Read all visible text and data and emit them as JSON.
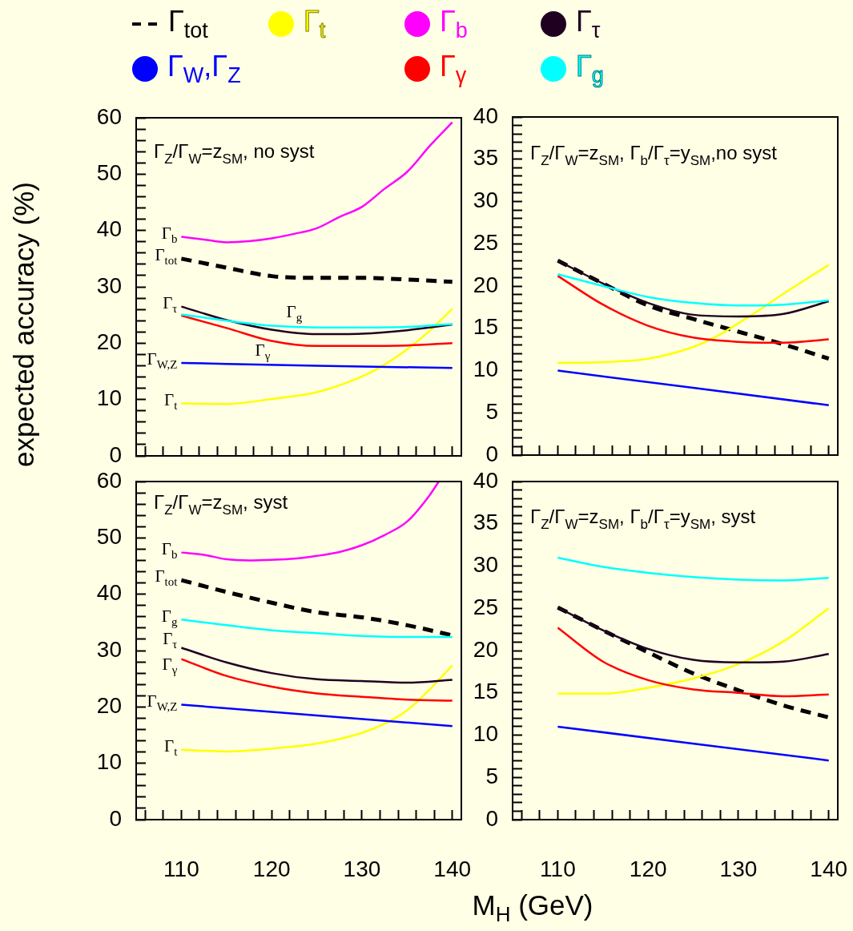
{
  "chart_data": [
    {
      "type": "line",
      "title": "Γ$_{Z}$/Γ$_{W}$=z$_{SM}$, no syst",
      "ylabel": "expected accuracy  (%)",
      "legend": "top",
      "marker": "none",
      "tick_labels": "y",
      "x": [
        110,
        115,
        120,
        125,
        130,
        135,
        140
      ],
      "xlim": [
        105,
        141
      ],
      "xticks": [
        {
          "value": 106,
          "label": null
        },
        {
          "value": 108,
          "label": null
        },
        110,
        {
          "value": 112,
          "label": null
        },
        {
          "value": 114,
          "label": null
        },
        {
          "value": 116,
          "label": null
        },
        {
          "value": 118,
          "label": null
        },
        120,
        {
          "value": 122,
          "label": null
        },
        {
          "value": 124,
          "label": null
        },
        {
          "value": 126,
          "label": null
        },
        {
          "value": 128,
          "label": null
        },
        130,
        {
          "value": 132,
          "label": null
        },
        {
          "value": 134,
          "label": null
        },
        {
          "value": 136,
          "label": null
        },
        {
          "value": 138,
          "label": null
        },
        140
      ],
      "ylim": [
        0,
        60
      ],
      "yticks": [
        0,
        {
          "value": 2,
          "label": null
        },
        {
          "value": 4,
          "label": null
        },
        {
          "value": 6,
          "label": null
        },
        {
          "value": 8,
          "label": null
        },
        10,
        {
          "value": 12,
          "label": null
        },
        {
          "value": 14,
          "label": null
        },
        {
          "value": 16,
          "label": null
        },
        {
          "value": 18,
          "label": null
        },
        20,
        {
          "value": 22,
          "label": null
        },
        {
          "value": 24,
          "label": null
        },
        {
          "value": 26,
          "label": null
        },
        {
          "value": 28,
          "label": null
        },
        30,
        {
          "value": 32,
          "label": null
        },
        {
          "value": 34,
          "label": null
        },
        {
          "value": 36,
          "label": null
        },
        {
          "value": 38,
          "label": null
        },
        40,
        {
          "value": 42,
          "label": null
        },
        {
          "value": 44,
          "label": null
        },
        {
          "value": 46,
          "label": null
        },
        {
          "value": 48,
          "label": null
        },
        50,
        {
          "value": 52,
          "label": null
        },
        {
          "value": 54,
          "label": null
        },
        {
          "value": 56,
          "label": null
        },
        {
          "value": 58,
          "label": null
        },
        60
      ],
      "series": [
        {
          "name": "Γ$_{tot}$",
          "color": "#000000",
          "line_style": "dashed",
          "values": [
            35.0,
            33.4,
            31.9,
            31.6,
            31.6,
            31.3,
            30.9
          ]
        },
        {
          "name": "Γ$_{t}$",
          "color": "#ffff00",
          "x": [
            110,
            115,
            120,
            125,
            130,
            132.5,
            135,
            137.5,
            140
          ],
          "values": [
            9.3,
            9.2,
            10.1,
            11.3,
            14.1,
            16.2,
            18.9,
            22.2,
            26.1
          ]
        },
        {
          "name": "Γ$_{b}$",
          "color": "#ff00ff",
          "x": [
            110,
            112.5,
            115,
            117.5,
            120,
            122.5,
            125,
            127.5,
            130,
            132.5,
            135,
            137.5,
            140
          ],
          "values": [
            38.9,
            38.4,
            37.9,
            38.1,
            38.6,
            39.4,
            40.4,
            42.4,
            44.2,
            47.4,
            50.4,
            55.0,
            59.2
          ]
        },
        {
          "name": "Γ$_{τ}$",
          "color": "#200020",
          "values": [
            26.5,
            24.1,
            22.4,
            21.6,
            21.7,
            22.3,
            23.3
          ]
        },
        {
          "name": "Γ$_{W}$,Γ$_{Z}$",
          "color": "#0000ff",
          "x": [
            110,
            125,
            140
          ],
          "values": [
            16.5,
            16.0,
            15.6
          ]
        },
        {
          "name": "Γ$_{γ}$",
          "color": "#ff0000",
          "values": [
            24.9,
            22.7,
            20.4,
            19.5,
            19.5,
            19.6,
            20.0
          ]
        },
        {
          "name": "Γ$_{g}$",
          "color": "#00ffff",
          "values": [
            25.1,
            24.0,
            23.1,
            22.8,
            22.8,
            22.9,
            23.4
          ]
        }
      ],
      "annotations": [
        {
          "text": "Γ$_{b}$",
          "x": 110,
          "y": 38.9
        },
        {
          "text": "Γ$_{tot}$",
          "x": 110,
          "y": 35.0
        },
        {
          "text": "Γ$_{τ}$",
          "x": 110,
          "y": 26.5
        },
        {
          "text": "Γ$_{g}$",
          "x": 122.5,
          "y": 22.9
        },
        {
          "text": "Γ$_{γ}$",
          "x": 119,
          "y": 20.6
        },
        {
          "text": "Γ$_{W,Z}$",
          "x": 110,
          "y": 16.5
        },
        {
          "text": "Γ$_{t}$",
          "x": 110,
          "y": 9.3
        }
      ]
    },
    {
      "type": "line",
      "title": "Γ$_{Z}$/Γ$_{W}$=z$_{SM}$, Γ$_{b}$/Γ$_{τ}$=y$_{SM}$,no syst",
      "marker": "none",
      "tick_labels": "y",
      "x": [
        110,
        115,
        120,
        125,
        130,
        135,
        140
      ],
      "xlim": [
        105,
        141
      ],
      "xticks": [
        {
          "value": 106,
          "label": null
        },
        {
          "value": 108,
          "label": null
        },
        110,
        {
          "value": 112,
          "label": null
        },
        {
          "value": 114,
          "label": null
        },
        {
          "value": 116,
          "label": null
        },
        {
          "value": 118,
          "label": null
        },
        120,
        {
          "value": 122,
          "label": null
        },
        {
          "value": 124,
          "label": null
        },
        {
          "value": 126,
          "label": null
        },
        {
          "value": 128,
          "label": null
        },
        130,
        {
          "value": 132,
          "label": null
        },
        {
          "value": 134,
          "label": null
        },
        {
          "value": 136,
          "label": null
        },
        {
          "value": 138,
          "label": null
        },
        140
      ],
      "ylim": [
        0,
        40
      ],
      "yticks": [
        0,
        {
          "value": 1,
          "label": null
        },
        {
          "value": 2,
          "label": null
        },
        {
          "value": 3,
          "label": null
        },
        {
          "value": 4,
          "label": null
        },
        5,
        {
          "value": 6,
          "label": null
        },
        {
          "value": 7,
          "label": null
        },
        {
          "value": 8,
          "label": null
        },
        {
          "value": 9,
          "label": null
        },
        10,
        {
          "value": 11,
          "label": null
        },
        {
          "value": 12,
          "label": null
        },
        {
          "value": 13,
          "label": null
        },
        {
          "value": 14,
          "label": null
        },
        15,
        {
          "value": 16,
          "label": null
        },
        {
          "value": 17,
          "label": null
        },
        {
          "value": 18,
          "label": null
        },
        {
          "value": 19,
          "label": null
        },
        20,
        {
          "value": 21,
          "label": null
        },
        {
          "value": 22,
          "label": null
        },
        {
          "value": 23,
          "label": null
        },
        {
          "value": 24,
          "label": null
        },
        25,
        {
          "value": 26,
          "label": null
        },
        {
          "value": 27,
          "label": null
        },
        {
          "value": 28,
          "label": null
        },
        {
          "value": 29,
          "label": null
        },
        30,
        {
          "value": 31,
          "label": null
        },
        {
          "value": 32,
          "label": null
        },
        {
          "value": 33,
          "label": null
        },
        {
          "value": 34,
          "label": null
        },
        35,
        {
          "value": 36,
          "label": null
        },
        {
          "value": 37,
          "label": null
        },
        {
          "value": 38,
          "label": null
        },
        {
          "value": 39,
          "label": null
        },
        40
      ],
      "series": [
        {
          "color": "#000000",
          "line_style": "dashed",
          "values": [
            23.0,
            20.3,
            17.7,
            16.1,
            14.6,
            13.1,
            11.4
          ]
        },
        {
          "color": "#ffff00",
          "x": [
            110,
            115,
            120,
            125,
            127.5,
            130,
            132.5,
            135,
            137.5,
            140
          ],
          "values": [
            10.9,
            11.0,
            11.4,
            12.8,
            14.0,
            15.6,
            17.3,
            19.1,
            20.8,
            22.5
          ]
        },
        {
          "color": "#200020",
          "values": [
            23.0,
            20.3,
            18.0,
            16.6,
            16.4,
            16.7,
            18.2
          ]
        },
        {
          "color": "#0000ff",
          "x": [
            110,
            140
          ],
          "values": [
            10.0,
            5.9
          ]
        },
        {
          "color": "#ff0000",
          "values": [
            21.2,
            17.8,
            15.3,
            13.9,
            13.4,
            13.3,
            13.7
          ]
        },
        {
          "color": "#00ffff",
          "values": [
            21.4,
            20.0,
            18.7,
            18.0,
            17.7,
            17.8,
            18.3
          ]
        }
      ]
    },
    {
      "type": "line",
      "title": "Γ$_{Z}$/Γ$_{W}$=z$_{SM}$, syst",
      "marker": "none",
      "x": [
        110,
        115,
        120,
        125,
        130,
        135,
        140
      ],
      "xlim": [
        105,
        141
      ],
      "xticks": [
        {
          "value": 106,
          "label": null
        },
        {
          "value": 108,
          "label": null
        },
        110,
        {
          "value": 112,
          "label": null
        },
        {
          "value": 114,
          "label": null
        },
        {
          "value": 116,
          "label": null
        },
        {
          "value": 118,
          "label": null
        },
        120,
        {
          "value": 122,
          "label": null
        },
        {
          "value": 124,
          "label": null
        },
        {
          "value": 126,
          "label": null
        },
        {
          "value": 128,
          "label": null
        },
        130,
        {
          "value": 132,
          "label": null
        },
        {
          "value": 134,
          "label": null
        },
        {
          "value": 136,
          "label": null
        },
        {
          "value": 138,
          "label": null
        },
        140
      ],
      "ylim": [
        0,
        60
      ],
      "yticks": [
        0,
        {
          "value": 2,
          "label": null
        },
        {
          "value": 4,
          "label": null
        },
        {
          "value": 6,
          "label": null
        },
        {
          "value": 8,
          "label": null
        },
        10,
        {
          "value": 12,
          "label": null
        },
        {
          "value": 14,
          "label": null
        },
        {
          "value": 16,
          "label": null
        },
        {
          "value": 18,
          "label": null
        },
        20,
        {
          "value": 22,
          "label": null
        },
        {
          "value": 24,
          "label": null
        },
        {
          "value": 26,
          "label": null
        },
        {
          "value": 28,
          "label": null
        },
        30,
        {
          "value": 32,
          "label": null
        },
        {
          "value": 34,
          "label": null
        },
        {
          "value": 36,
          "label": null
        },
        {
          "value": 38,
          "label": null
        },
        40,
        {
          "value": 42,
          "label": null
        },
        {
          "value": 44,
          "label": null
        },
        {
          "value": 46,
          "label": null
        },
        {
          "value": 48,
          "label": null
        },
        50,
        {
          "value": 52,
          "label": null
        },
        {
          "value": 54,
          "label": null
        },
        {
          "value": 56,
          "label": null
        },
        {
          "value": 58,
          "label": null
        },
        60
      ],
      "series": [
        {
          "color": "#000000",
          "line_style": "dashed",
          "values": [
            42.5,
            40.4,
            38.5,
            36.8,
            35.9,
            34.5,
            32.7
          ]
        },
        {
          "color": "#ffff00",
          "x": [
            110,
            115,
            120,
            125,
            130,
            132.5,
            135,
            137.5,
            140
          ],
          "values": [
            12.4,
            12.1,
            12.6,
            13.5,
            15.4,
            17.0,
            19.4,
            23.1,
            27.4
          ]
        },
        {
          "color": "#ff00ff",
          "x": [
            110,
            112.5,
            115,
            117.5,
            120,
            122.5,
            125,
            127.5,
            130,
            132.5,
            135,
            137.5,
            138.5
          ],
          "values": [
            47.4,
            47.0,
            46.2,
            46.0,
            46.1,
            46.3,
            46.8,
            47.5,
            48.7,
            50.5,
            52.9,
            57.6,
            60
          ]
        },
        {
          "color": "#200020",
          "values": [
            30.5,
            27.9,
            26.0,
            24.9,
            24.6,
            24.3,
            24.8
          ]
        },
        {
          "color": "#0000ff",
          "x": [
            110,
            140
          ],
          "values": [
            20.4,
            16.6
          ]
        },
        {
          "color": "#ff0000",
          "values": [
            28.5,
            25.5,
            23.6,
            22.4,
            21.8,
            21.3,
            21.1
          ]
        },
        {
          "color": "#00ffff",
          "values": [
            35.5,
            34.5,
            33.6,
            33.1,
            32.6,
            32.4,
            32.4
          ]
        }
      ],
      "annotations": [
        {
          "text": "Γ$_{b}$",
          "x": 110,
          "y": 47.4
        },
        {
          "text": "Γ$_{tot}$",
          "x": 110,
          "y": 42.5
        },
        {
          "text": "Γ$_{g}$",
          "x": 110,
          "y": 35.5
        },
        {
          "text": "Γ$_{τ}$",
          "x": 110,
          "y": 30.5
        },
        {
          "text": "Γ$_{γ}$",
          "x": 110,
          "y": 28.5
        },
        {
          "text": "Γ$_{W,Z}$",
          "x": 110,
          "y": 20.4
        },
        {
          "text": "Γ$_{t}$",
          "x": 110,
          "y": 12.4
        }
      ]
    },
    {
      "type": "line",
      "title": "Γ$_{Z}$/Γ$_{W}$=z$_{SM}$, Γ$_{b}$/Γ$_{τ}$=y$_{SM}$, syst",
      "xlabel": "M$_{H}$ (GeV)",
      "marker": "none",
      "x": [
        110,
        115,
        120,
        125,
        130,
        135,
        140
      ],
      "xlim": [
        105,
        141
      ],
      "xticks": [
        {
          "value": 106,
          "label": null
        },
        {
          "value": 108,
          "label": null
        },
        110,
        {
          "value": 112,
          "label": null
        },
        {
          "value": 114,
          "label": null
        },
        {
          "value": 116,
          "label": null
        },
        {
          "value": 118,
          "label": null
        },
        120,
        {
          "value": 122,
          "label": null
        },
        {
          "value": 124,
          "label": null
        },
        {
          "value": 126,
          "label": null
        },
        {
          "value": 128,
          "label": null
        },
        130,
        {
          "value": 132,
          "label": null
        },
        {
          "value": 134,
          "label": null
        },
        {
          "value": 136,
          "label": null
        },
        {
          "value": 138,
          "label": null
        },
        140
      ],
      "ylim": [
        0,
        40
      ],
      "yticks": [
        0,
        {
          "value": 1,
          "label": null
        },
        {
          "value": 2,
          "label": null
        },
        {
          "value": 3,
          "label": null
        },
        {
          "value": 4,
          "label": null
        },
        5,
        {
          "value": 6,
          "label": null
        },
        {
          "value": 7,
          "label": null
        },
        {
          "value": 8,
          "label": null
        },
        {
          "value": 9,
          "label": null
        },
        10,
        {
          "value": 11,
          "label": null
        },
        {
          "value": 12,
          "label": null
        },
        {
          "value": 13,
          "label": null
        },
        {
          "value": 14,
          "label": null
        },
        15,
        {
          "value": 16,
          "label": null
        },
        {
          "value": 17,
          "label": null
        },
        {
          "value": 18,
          "label": null
        },
        {
          "value": 19,
          "label": null
        },
        20,
        {
          "value": 21,
          "label": null
        },
        {
          "value": 22,
          "label": null
        },
        {
          "value": 23,
          "label": null
        },
        {
          "value": 24,
          "label": null
        },
        25,
        {
          "value": 26,
          "label": null
        },
        {
          "value": 27,
          "label": null
        },
        {
          "value": 28,
          "label": null
        },
        {
          "value": 29,
          "label": null
        },
        30,
        {
          "value": 31,
          "label": null
        },
        {
          "value": 32,
          "label": null
        },
        {
          "value": 33,
          "label": null
        },
        {
          "value": 34,
          "label": null
        },
        35,
        {
          "value": 36,
          "label": null
        },
        {
          "value": 37,
          "label": null
        },
        {
          "value": 38,
          "label": null
        },
        {
          "value": 39,
          "label": null
        },
        40
      ],
      "series": [
        {
          "color": "#000000",
          "line_style": "dashed",
          "values": [
            25.1,
            22.4,
            19.8,
            17.3,
            15.3,
            13.5,
            12.1
          ]
        },
        {
          "color": "#ffff00",
          "values": [
            14.9,
            14.9,
            15.6,
            16.7,
            18.4,
            21.1,
            25.0
          ]
        },
        {
          "color": "#200020",
          "values": [
            25.1,
            22.4,
            20.2,
            18.9,
            18.6,
            18.7,
            19.6
          ]
        },
        {
          "color": "#0000ff",
          "x": [
            110,
            140
          ],
          "values": [
            11.0,
            7.0
          ]
        },
        {
          "color": "#ff0000",
          "values": [
            22.7,
            18.7,
            16.5,
            15.4,
            15.0,
            14.6,
            14.8
          ]
        },
        {
          "color": "#00ffff",
          "values": [
            31.0,
            29.9,
            29.2,
            28.7,
            28.4,
            28.3,
            28.6
          ]
        }
      ]
    }
  ]
}
